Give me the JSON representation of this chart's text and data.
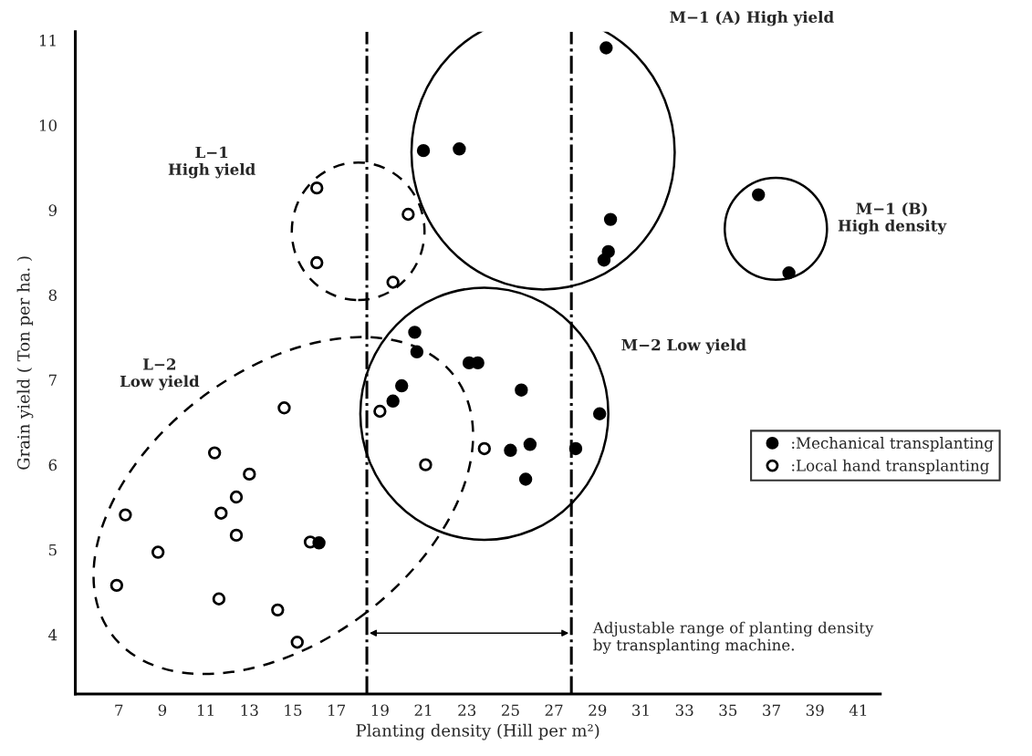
{
  "chart_data": {
    "type": "scatter",
    "xlabel": "Planting density (Hill per m²)",
    "ylabel": "Grain yield ( Ton per ha. )",
    "series": [
      {
        "name": ":Mechanical transplanting",
        "color": "#000000",
        "x": [
          16.2,
          29.4,
          21.0,
          22.65,
          29.6,
          29.5,
          29.3,
          20.6,
          20.7,
          23.1,
          23.5,
          20.0,
          19.6,
          25.5,
          29.1,
          25.0,
          25.9,
          28.0,
          25.7,
          36.4,
          37.8
        ],
        "values": [
          5.08,
          10.91,
          9.7,
          9.72,
          8.89,
          8.51,
          8.41,
          7.56,
          7.33,
          7.2,
          7.2,
          6.93,
          6.75,
          6.88,
          6.6,
          6.17,
          6.24,
          6.19,
          5.83,
          9.18,
          8.26
        ]
      },
      {
        "name": ":Local hand transplanting",
        "color": "#ffffff",
        "x": [
          14.6,
          11.4,
          13.0,
          12.4,
          11.7,
          7.3,
          12.4,
          15.8,
          8.8,
          6.9,
          11.6,
          14.3,
          15.2,
          19.0,
          21.1,
          23.8,
          20.3,
          19.6,
          16.1,
          16.1
        ],
        "values": [
          6.67,
          6.14,
          5.89,
          5.62,
          5.43,
          5.41,
          5.17,
          5.09,
          4.97,
          4.58,
          4.42,
          4.29,
          3.91,
          6.63,
          6.0,
          6.19,
          8.95,
          8.15,
          9.26,
          8.38
        ]
      }
    ],
    "marker": "circle",
    "xlim": [
      5,
      42
    ],
    "ylim": [
      3.3,
      11.1
    ],
    "xticks": [
      7,
      9,
      11,
      13,
      15,
      17,
      19,
      21,
      23,
      25,
      27,
      29,
      31,
      33,
      35,
      37,
      39,
      41
    ],
    "yticks": [
      4,
      5,
      6,
      7,
      8,
      9,
      10,
      11
    ],
    "ref_lines": [
      {
        "axis": "x",
        "value": 18.4,
        "line_style": "dashdot",
        "color": "#000000"
      },
      {
        "axis": "x",
        "value": 27.8,
        "line_style": "dashdot",
        "color": "#000000"
      }
    ],
    "annotations": [
      "M−1 (A) High yield",
      "L−1\nHigh yield",
      "M−1 (B)\nHigh density",
      "M−2 Low yield",
      "L−2\nLow yield",
      "Adjustable range of planting density\nby transplanting machine."
    ],
    "legend": "right",
    "grid": false
  }
}
